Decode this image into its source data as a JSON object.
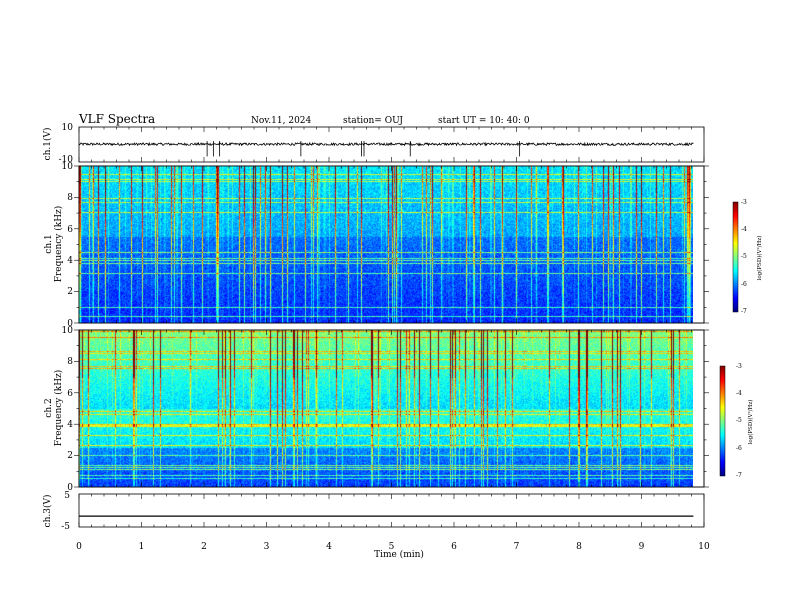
{
  "header": {
    "title": "VLF Spectra",
    "date": "Nov.11, 2024",
    "station": "station= OUJ",
    "start": "start UT =   10: 40: 0"
  },
  "chart_data": [
    {
      "type": "line",
      "name": "ch1-waveform",
      "ylabel": "ch.1(V)",
      "ylim": [
        -10,
        10
      ],
      "ytick_labels": [
        "10",
        "-10"
      ],
      "baseline": 0.2,
      "xlim": [
        0,
        10
      ]
    },
    {
      "type": "heatmap",
      "name": "ch1-spectrogram",
      "ylabel": "ch.1\nFrequency (kHz)",
      "ylim": [
        0,
        10
      ],
      "ytick_labels": [
        "0",
        "2",
        "4",
        "6",
        "8",
        "10"
      ],
      "xlim": [
        0,
        10
      ],
      "data_end": 9.83,
      "colorbar": {
        "label": "log(PSD)(V²/Hz)",
        "range": [
          -7,
          -3
        ],
        "ticks": [
          "-3",
          "-4",
          "-5",
          "-6",
          "-7"
        ]
      }
    },
    {
      "type": "heatmap",
      "name": "ch2-spectrogram",
      "ylabel": "ch.2\nFrequency (kHz)",
      "ylim": [
        0,
        10
      ],
      "ytick_labels": [
        "0",
        "2",
        "4",
        "6",
        "8",
        "10"
      ],
      "xlim": [
        0,
        10
      ],
      "data_end": 9.83,
      "colorbar": {
        "label": "log(PSD)(V²/Hz)",
        "range": [
          -7,
          -3
        ],
        "ticks": [
          "-3",
          "-4",
          "-5",
          "-6",
          "-7"
        ]
      }
    },
    {
      "type": "line",
      "name": "ch3-waveform",
      "ylabel": "ch.3(V)",
      "ylim": [
        -5,
        5
      ],
      "ytick_labels": [
        "5",
        "-5"
      ],
      "baseline": -1.7,
      "xlim": [
        0,
        10
      ]
    }
  ],
  "xaxis": {
    "label": "Time (min)",
    "tick_labels": [
      "0",
      "1",
      "2",
      "3",
      "4",
      "5",
      "6",
      "7",
      "8",
      "9",
      "10"
    ]
  },
  "colors": {
    "colormap": [
      "#00007f",
      "#0000ff",
      "#007fff",
      "#00ffff",
      "#7fff7f",
      "#ffff00",
      "#ff7f00",
      "#ff0000",
      "#7f0000"
    ]
  }
}
